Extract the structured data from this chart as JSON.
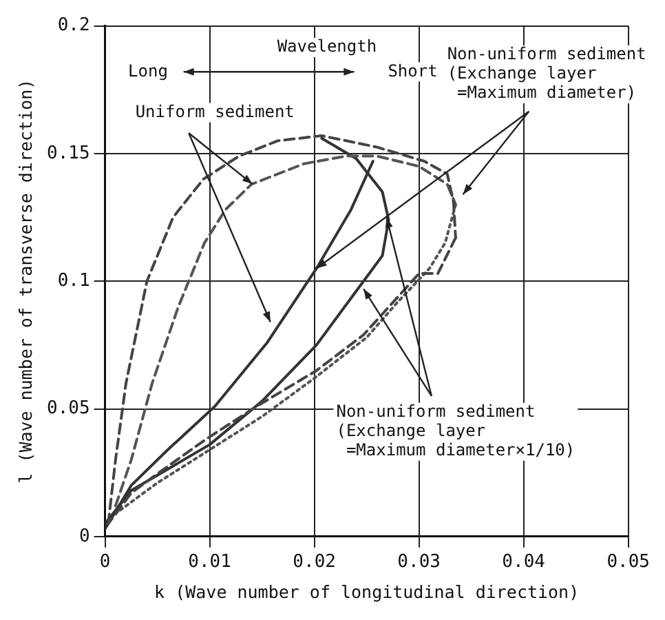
{
  "chart_data": {
    "type": "line",
    "xlabel": "k (Wave number of longitudinal direction)",
    "ylabel": "l (Wave number of transverse direction)",
    "xlim": [
      0,
      0.05
    ],
    "xticks": [
      0,
      0.01,
      0.02,
      0.03,
      0.04,
      0.05
    ],
    "ylim": [
      0,
      0.2
    ],
    "yticks": [
      0,
      0.05,
      0.1,
      0.15,
      0.2
    ],
    "grid": true,
    "legend": false,
    "marker": "none",
    "annotations": [
      "Wavelength",
      "Long",
      "Short",
      {
        "text": "Uniform sediment",
        "x": 0.0141,
        "y": 0.138
      },
      {
        "text": "Non-uniform sediment\n(Exchange layer\n =Maximum diameter)",
        "x": 0.0202,
        "y": 0.105
      },
      {
        "text": "Non-uniform sediment\n(Exchange layer\n =Maximum diameter×1/10)",
        "x": 0.0269,
        "y": 0.125
      }
    ],
    "series": [
      {
        "color": "#444444",
        "line_style": "dashed",
        "x": [
          0.0003,
          0.001,
          0.002,
          0.004,
          0.0065,
          0.0094,
          0.0128,
          0.0165,
          0.0207,
          0.026,
          0.0305,
          0.0327,
          0.0333,
          0.0335
        ],
        "values": [
          0.005,
          0.03,
          0.06,
          0.1,
          0.125,
          0.14,
          0.149,
          0.155,
          0.157,
          0.1525,
          0.147,
          0.142,
          0.131,
          0.117
        ]
      },
      {
        "color": "#444444",
        "line_style": "dashed",
        "x": [
          0.0335,
          0.0318,
          0.03,
          0.0247,
          0.0202,
          0.0145,
          0.0096,
          0.0048,
          0.0025,
          0.0003
        ],
        "values": [
          0.117,
          0.103,
          0.103,
          0.079,
          0.065,
          0.051,
          0.038,
          0.024,
          0.017,
          0.005
        ]
      },
      {
        "color": "#555555",
        "line_style": "dashed",
        "x": [
          0.001,
          0.0025,
          0.0045,
          0.007,
          0.0095,
          0.0115,
          0.014,
          0.019,
          0.023,
          0.026,
          0.03,
          0.0327,
          0.0335
        ],
        "values": [
          0.012,
          0.03,
          0.06,
          0.09,
          0.115,
          0.128,
          0.138,
          0.146,
          0.149,
          0.149,
          0.145,
          0.138,
          0.13
        ]
      },
      {
        "color": "#333333",
        "line_style": "solid",
        "x": [
          0,
          0.0025,
          0.006,
          0.0105,
          0.0155,
          0.0202,
          0.0235,
          0.0256
        ],
        "values": [
          0.003,
          0.02,
          0.034,
          0.051,
          0.076,
          0.105,
          0.128,
          0.147
        ]
      },
      {
        "color": "#333333",
        "line_style": "solid",
        "x": [
          0.0207,
          0.024,
          0.0265,
          0.0271,
          0.0265,
          0.0247,
          0.0202,
          0.015,
          0.01,
          0.0025,
          0
        ],
        "values": [
          0.156,
          0.148,
          0.135,
          0.124,
          0.11,
          0.1,
          0.075,
          0.053,
          0.036,
          0.018,
          0.005
        ]
      },
      {
        "color": "#555555",
        "line_style": "dotted",
        "x": [
          0.0335,
          0.0325,
          0.031,
          0.028,
          0.025,
          0.02,
          0.015,
          0.01,
          0.005,
          0.001
        ],
        "values": [
          0.13,
          0.115,
          0.105,
          0.092,
          0.078,
          0.062,
          0.047,
          0.034,
          0.021,
          0.009
        ]
      }
    ]
  }
}
